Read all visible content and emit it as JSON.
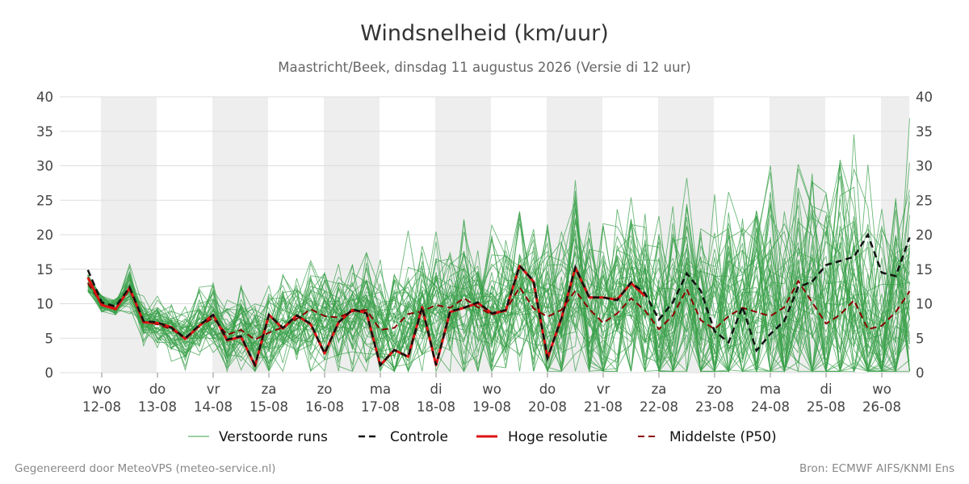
{
  "chart_data": {
    "type": "line",
    "title": "Windsnelheid (km/uur)",
    "subtitle": "Maastricht/Beek, dinsdag 11 augustus 2026 (Versie di 12 uur)",
    "ylim": [
      0,
      40
    ],
    "yticks": [
      0,
      5,
      10,
      15,
      20,
      25,
      30,
      35,
      40
    ],
    "x_start_days": 0,
    "x_end_days": 15,
    "x_axis_days_first_label": "12-08",
    "x_ticks": [
      {
        "day": "wo",
        "date": "12-08"
      },
      {
        "day": "do",
        "date": "13-08"
      },
      {
        "day": "vr",
        "date": "14-08"
      },
      {
        "day": "za",
        "date": "15-08"
      },
      {
        "day": "zo",
        "date": "16-08"
      },
      {
        "day": "ma",
        "date": "17-08"
      },
      {
        "day": "di",
        "date": "18-08"
      },
      {
        "day": "wo",
        "date": "19-08"
      },
      {
        "day": "do",
        "date": "20-08"
      },
      {
        "day": "vr",
        "date": "21-08"
      },
      {
        "day": "za",
        "date": "22-08"
      },
      {
        "day": "zo",
        "date": "23-08"
      },
      {
        "day": "ma",
        "date": "24-08"
      },
      {
        "day": "di",
        "date": "25-08"
      },
      {
        "day": "wo",
        "date": "26-08"
      }
    ],
    "grid": true,
    "legend_position": "bottom",
    "legend": [
      {
        "label": "Verstoorde runs",
        "color": "#3aa04a",
        "style": "thin"
      },
      {
        "label": "Controle",
        "color": "#111111",
        "style": "dashed"
      },
      {
        "label": "Hoge resolutie",
        "color": "#dd1111",
        "style": "solid"
      },
      {
        "label": "Middelste (P50)",
        "color": "#8b0000",
        "style": "dashed"
      }
    ],
    "series_hires": {
      "name": "Hoge resolutie",
      "color": "#dd1111",
      "x": [
        -0.25,
        -0.0,
        0.25,
        0.5,
        0.75,
        1.0,
        1.25,
        1.5,
        1.75,
        2.0,
        2.25,
        2.5,
        2.75,
        3.0,
        3.25,
        3.5,
        3.75,
        4.0,
        4.25,
        4.5,
        4.75,
        5.0,
        5.25,
        5.5,
        5.75,
        6.0,
        6.25,
        6.5,
        6.75,
        7.0,
        7.25,
        7.5,
        7.75,
        8.0,
        8.25,
        8.5,
        8.75,
        9.0,
        9.25,
        9.5,
        9.75
      ],
      "y": [
        13.8,
        9.8,
        9.2,
        12.3,
        7.3,
        7.2,
        6.6,
        4.9,
        6.8,
        8.4,
        4.7,
        5.2,
        1.0,
        8.4,
        6.4,
        8.3,
        7.0,
        2.8,
        7.3,
        9.1,
        8.7,
        1.1,
        3.3,
        2.3,
        9.5,
        1.1,
        8.8,
        9.4,
        10.1,
        8.6,
        9.0,
        15.5,
        13.2,
        2.1,
        7.9,
        15.2,
        10.9,
        10.9,
        10.6,
        13.0,
        11.1
      ]
    },
    "series_control": {
      "name": "Controle",
      "color": "#111111",
      "x": [
        -0.25,
        -0.0,
        0.25,
        0.5,
        0.75,
        1.0,
        1.25,
        1.5,
        1.75,
        2.0,
        2.25,
        2.5,
        2.75,
        3.0,
        3.25,
        3.5,
        3.75,
        4.0,
        4.25,
        4.5,
        4.75,
        5.0,
        5.25,
        5.5,
        5.75,
        6.0,
        6.25,
        6.5,
        6.75,
        7.0,
        7.25,
        7.5,
        7.75,
        8.0,
        8.25,
        8.5,
        8.75,
        9.0,
        9.25,
        9.5,
        9.75,
        10.0,
        10.25,
        10.5,
        10.75,
        11.0,
        11.25,
        11.5,
        11.75,
        12.0,
        12.25,
        12.5,
        12.75,
        13.0,
        13.25,
        13.5,
        13.75,
        14.0,
        14.25,
        14.5
      ],
      "y": [
        14.9,
        10.2,
        9.6,
        12.4,
        7.5,
        7.3,
        6.5,
        5.0,
        6.9,
        8.4,
        4.8,
        5.3,
        1.1,
        8.4,
        6.5,
        8.3,
        7.1,
        2.8,
        7.3,
        9.2,
        8.6,
        1.1,
        3.3,
        2.3,
        9.5,
        1.1,
        8.9,
        9.4,
        10.2,
        8.6,
        9.1,
        15.5,
        13.3,
        2.1,
        7.9,
        15.3,
        10.9,
        10.9,
        10.5,
        13.1,
        11.5,
        7.7,
        10.2,
        14.4,
        11.9,
        6.0,
        4.4,
        9.6,
        3.2,
        5.6,
        7.5,
        12.4,
        13.2,
        15.6,
        16.2,
        16.8,
        20.0,
        14.5,
        14.0,
        19.6
      ]
    },
    "series_median": {
      "name": "Middelste (P50)",
      "color": "#8b0000",
      "x": [
        -0.25,
        -0.0,
        0.25,
        0.5,
        0.75,
        1.0,
        1.25,
        1.5,
        1.75,
        2.0,
        2.25,
        2.5,
        2.75,
        3.0,
        3.25,
        3.5,
        3.75,
        4.0,
        4.25,
        4.5,
        4.75,
        5.0,
        5.25,
        5.5,
        5.75,
        6.0,
        6.25,
        6.5,
        6.75,
        7.0,
        7.25,
        7.5,
        7.75,
        8.0,
        8.25,
        8.5,
        8.75,
        9.0,
        9.25,
        9.5,
        9.75,
        10.0,
        10.25,
        10.5,
        10.75,
        11.0,
        11.25,
        11.5,
        11.75,
        12.0,
        12.25,
        12.5,
        12.75,
        13.0,
        13.25,
        13.5,
        13.75,
        14.0,
        14.25,
        14.5
      ],
      "y": [
        13.0,
        10.0,
        9.5,
        12.0,
        7.4,
        7.0,
        6.3,
        5.0,
        6.8,
        7.9,
        5.5,
        6.2,
        4.8,
        5.8,
        6.6,
        7.8,
        9.2,
        8.2,
        8.0,
        8.9,
        9.1,
        6.2,
        6.5,
        8.5,
        8.9,
        9.8,
        9.4,
        10.8,
        9.5,
        8.4,
        9.0,
        12.4,
        9.3,
        8.1,
        9.1,
        11.9,
        9.2,
        7.2,
        8.6,
        10.8,
        9.0,
        6.3,
        8.3,
        12.1,
        7.6,
        6.3,
        8.2,
        9.4,
        8.8,
        8.2,
        9.5,
        13.3,
        10.2,
        7.1,
        8.4,
        10.5,
        6.3,
        6.8,
        8.8,
        11.8
      ]
    },
    "ensemble_count": 50,
    "ensemble_color": "#3aa04a",
    "ensemble_x_start": -0.25,
    "ensemble_x_step": 0.25,
    "ensemble_x_end": 14.5
  },
  "footer": {
    "left": "Gegenereerd door MeteoVPS (meteo-service.nl)",
    "right": "Bron: ECMWF AIFS/KNMI Ens"
  }
}
